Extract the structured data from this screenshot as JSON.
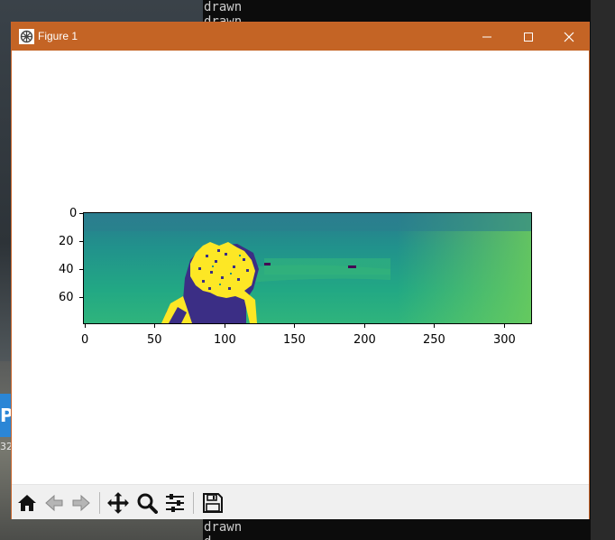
{
  "window": {
    "title": "Figure 1",
    "accent": "#c46425"
  },
  "terminal": {
    "lines_top": [
      "drawn",
      "drawn"
    ],
    "lines_bottom": [
      "drawn",
      "d"
    ]
  },
  "desktop": {
    "icon_text": "Pr",
    "icon_caption": "32"
  },
  "toolbar": {
    "buttons": [
      {
        "name": "home",
        "icon": "home-icon"
      },
      {
        "name": "back",
        "icon": "arrow-left-icon"
      },
      {
        "name": "forward",
        "icon": "arrow-right-icon"
      },
      {
        "name": "pan",
        "icon": "move-icon"
      },
      {
        "name": "zoom",
        "icon": "magnifier-icon"
      },
      {
        "name": "configure",
        "icon": "sliders-icon"
      },
      {
        "name": "save",
        "icon": "floppy-icon"
      }
    ]
  },
  "chart_data": {
    "type": "heatmap",
    "colormap": "viridis",
    "x_ticks": [
      "0",
      "50",
      "100",
      "150",
      "200",
      "250",
      "300"
    ],
    "y_ticks": [
      "0",
      "20",
      "40",
      "60"
    ],
    "xlim": [
      0,
      320
    ],
    "ylim": [
      80,
      0
    ]
  }
}
